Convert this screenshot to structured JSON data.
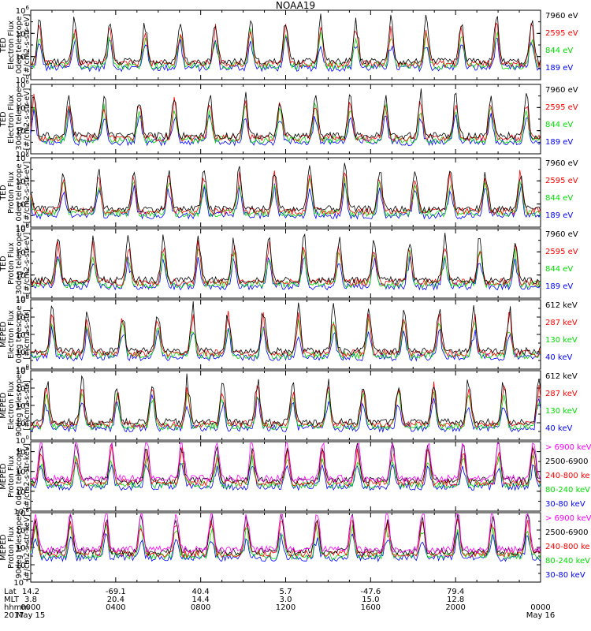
{
  "title": "NOAA19",
  "colors": {
    "black": "#000000",
    "red": "#ff0000",
    "green": "#00dd00",
    "blue": "#0000ff",
    "magenta": "#ff00ff"
  },
  "chart_data": [
    {
      "type": "line",
      "ylabel": [
        "TED",
        "Electron Flux",
        "0deg telescope",
        "[#/cm2-s-str-eV]"
      ],
      "ytick_labels": [
        "10^0",
        "10^2",
        "10^4",
        "10^6"
      ],
      "ylim": [
        1,
        1000000
      ],
      "yscale": "log",
      "series": [
        {
          "name": "7960 eV",
          "color": "#000000"
        },
        {
          "name": "2595 eV",
          "color": "#ff0000"
        },
        {
          "name": "844 eV",
          "color": "#00dd00"
        },
        {
          "name": "189 eV",
          "color": "#0000ff"
        }
      ]
    },
    {
      "type": "line",
      "ylabel": [
        "TED",
        "Electron Flux",
        "30deg telescope",
        "[#/cm2-s-str-eV]"
      ],
      "ytick_labels": [
        "10^0",
        "10^2",
        "10^4",
        "10^6"
      ],
      "ylim": [
        1,
        1000000
      ],
      "yscale": "log",
      "series": [
        {
          "name": "7960 eV",
          "color": "#000000"
        },
        {
          "name": "2595 eV",
          "color": "#ff0000"
        },
        {
          "name": "844 eV",
          "color": "#00dd00"
        },
        {
          "name": "189 eV",
          "color": "#0000ff"
        }
      ]
    },
    {
      "type": "line",
      "ylabel": [
        "TED",
        "Proton Flux",
        "0deg telescope",
        "[#/cm2-s-str-eV]"
      ],
      "ytick_labels": [
        "10^0",
        "10^2",
        "10^4",
        "10^6"
      ],
      "ylim": [
        1,
        1000000
      ],
      "yscale": "log",
      "series": [
        {
          "name": "7960 eV",
          "color": "#000000"
        },
        {
          "name": "2595 eV",
          "color": "#ff0000"
        },
        {
          "name": "844 eV",
          "color": "#00dd00"
        },
        {
          "name": "189 eV",
          "color": "#0000ff"
        }
      ]
    },
    {
      "type": "line",
      "ylabel": [
        "TED",
        "Proton Flux",
        "30deg telescope",
        "[#/cm2-s-str-eV]"
      ],
      "ytick_labels": [
        "10^0",
        "10^2",
        "10^4",
        "10^6"
      ],
      "ylim": [
        1,
        1000000
      ],
      "yscale": "log",
      "series": [
        {
          "name": "7960 eV",
          "color": "#000000"
        },
        {
          "name": "2595 eV",
          "color": "#ff0000"
        },
        {
          "name": "844 eV",
          "color": "#00dd00"
        },
        {
          "name": "189 eV",
          "color": "#0000ff"
        }
      ]
    },
    {
      "type": "line",
      "ylabel": [
        "MEPED",
        "Electron Flux",
        "0deg telescope",
        "[#/cm2-s-str]"
      ],
      "ytick_labels": [
        "10^0",
        "10^2",
        "10^4",
        "10^6",
        "10^8"
      ],
      "ylim": [
        1,
        100000000
      ],
      "yscale": "log",
      "series": [
        {
          "name": "612 keV",
          "color": "#000000"
        },
        {
          "name": "287 keV",
          "color": "#ff0000"
        },
        {
          "name": "130 keV",
          "color": "#00dd00"
        },
        {
          "name": "40 keV",
          "color": "#0000ff"
        }
      ]
    },
    {
      "type": "line",
      "ylabel": [
        "MEPED",
        "Electron Flux",
        "90deg telescope",
        "[#/cm2-s-str]"
      ],
      "ytick_labels": [
        "10^0",
        "10^2",
        "10^4",
        "10^6",
        "10^8"
      ],
      "ylim": [
        1,
        100000000
      ],
      "yscale": "log",
      "series": [
        {
          "name": "612 keV",
          "color": "#000000"
        },
        {
          "name": "287 keV",
          "color": "#ff0000"
        },
        {
          "name": "130 keV",
          "color": "#00dd00"
        },
        {
          "name": "40 keV",
          "color": "#0000ff"
        }
      ]
    },
    {
      "type": "line",
      "ylabel": [
        "MEPED",
        "Proton Flux",
        "0deg telescope",
        "[#/cm2-s-str-keV]"
      ],
      "ytick_labels": [
        "10^-2",
        "10^0",
        "10^2",
        "10^4"
      ],
      "ylim": [
        0.01,
        100000
      ],
      "yscale": "log",
      "series": [
        {
          "name": "> 6900 keV",
          "color": "#ff00ff"
        },
        {
          "name": "2500-6900",
          "color": "#000000"
        },
        {
          "name": "240-800 ke",
          "color": "#ff0000"
        },
        {
          "name": "80-240 keV",
          "color": "#00dd00"
        },
        {
          "name": "30-80 keV",
          "color": "#0000ff"
        }
      ]
    },
    {
      "type": "line",
      "ylabel": [
        "MEPED",
        "Proton Flux",
        "90deg telescope",
        "[#/cm2-s-str-keV]"
      ],
      "ytick_labels": [
        "10^-2",
        "10^0",
        "10^2",
        "10^4",
        "10^6"
      ],
      "ylim": [
        0.01,
        1000000
      ],
      "yscale": "log",
      "series": [
        {
          "name": "> 6900 keV",
          "color": "#ff00ff"
        },
        {
          "name": "2500-6900",
          "color": "#000000"
        },
        {
          "name": "240-800 ke",
          "color": "#ff0000"
        },
        {
          "name": "80-240 keV",
          "color": "#00dd00"
        },
        {
          "name": "30-80 keV",
          "color": "#0000ff"
        }
      ]
    }
  ],
  "footer": {
    "row_labels": [
      "Lat",
      "MLT",
      "hhmm",
      "2017"
    ],
    "columns": [
      {
        "lat": "14.2",
        "mlt": "3.8",
        "hhmm": "0000",
        "date": "May 15"
      },
      {
        "lat": "-69.1",
        "mlt": "20.4",
        "hhmm": "0400",
        "date": ""
      },
      {
        "lat": "40.4",
        "mlt": "14.4",
        "hhmm": "0800",
        "date": ""
      },
      {
        "lat": "5.7",
        "mlt": "3.0",
        "hhmm": "1200",
        "date": ""
      },
      {
        "lat": "-47.6",
        "mlt": "15.0",
        "hhmm": "1600",
        "date": ""
      },
      {
        "lat": "79.4",
        "mlt": "12.8",
        "hhmm": "2000",
        "date": ""
      },
      {
        "lat": "",
        "mlt": "",
        "hhmm": "0000",
        "date": "May 16"
      }
    ]
  }
}
